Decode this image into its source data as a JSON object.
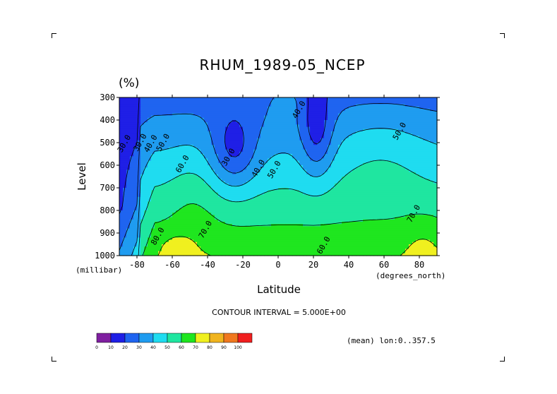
{
  "chart_data": {
    "type": "heatmap",
    "title": "RHUM_1989-05_NCEP",
    "units_label": "(%)",
    "xlabel": "Latitude",
    "ylabel": "Level",
    "x_unit_label": "(degrees_north)",
    "y_unit_label": "(millibar)",
    "x_ticks": [
      "-80",
      "-60",
      "-40",
      "-20",
      "0",
      "20",
      "40",
      "60",
      "80"
    ],
    "x_tick_values": [
      -80,
      -60,
      -40,
      -20,
      0,
      20,
      40,
      60,
      80
    ],
    "y_ticks": [
      "300",
      "400",
      "500",
      "600",
      "700",
      "800",
      "900",
      "1000"
    ],
    "y_tick_values": [
      300,
      400,
      500,
      600,
      700,
      800,
      900,
      1000
    ],
    "xlim": [
      -90,
      90
    ],
    "ylim": [
      1000,
      300
    ],
    "contour_interval_text": "CONTOUR INTERVAL = 5.000E+00",
    "mean_text": "(mean) lon:0..357.5",
    "contour_labels": [
      {
        "text": "30.0",
        "x": -86,
        "y": 510
      },
      {
        "text": "30.0",
        "x": -77,
        "y": 505
      },
      {
        "text": "40.0",
        "x": -71,
        "y": 510
      },
      {
        "text": "50.0",
        "x": -64,
        "y": 505
      },
      {
        "text": "60.0",
        "x": -53,
        "y": 600
      },
      {
        "text": "30.0",
        "x": -27,
        "y": 570
      },
      {
        "text": "40.0",
        "x": -10,
        "y": 620
      },
      {
        "text": "50.0",
        "x": -1,
        "y": 625
      },
      {
        "text": "40.0",
        "x": 13,
        "y": 360
      },
      {
        "text": "50.0",
        "x": 70,
        "y": 455
      },
      {
        "text": "70.0",
        "x": -40,
        "y": 890
      },
      {
        "text": "80.0",
        "x": -67,
        "y": 920
      },
      {
        "text": "60.0",
        "x": 27,
        "y": 960
      },
      {
        "text": "70.0",
        "x": 78,
        "y": 820
      }
    ],
    "colorbar": {
      "boundaries": [
        "0",
        "10",
        "20",
        "30",
        "40",
        "50",
        "60",
        "70",
        "80",
        "90",
        "100"
      ],
      "colors": [
        "#7f1fa0",
        "#1f1fe6",
        "#1f64f0",
        "#1f9cf0",
        "#1fdcf0",
        "#1fe6a0",
        "#1fe61f",
        "#f0f01f",
        "#f0b41f",
        "#f0781f",
        "#f01f1f"
      ]
    },
    "grid": false,
    "legend": "colorbar-bottom-left"
  }
}
